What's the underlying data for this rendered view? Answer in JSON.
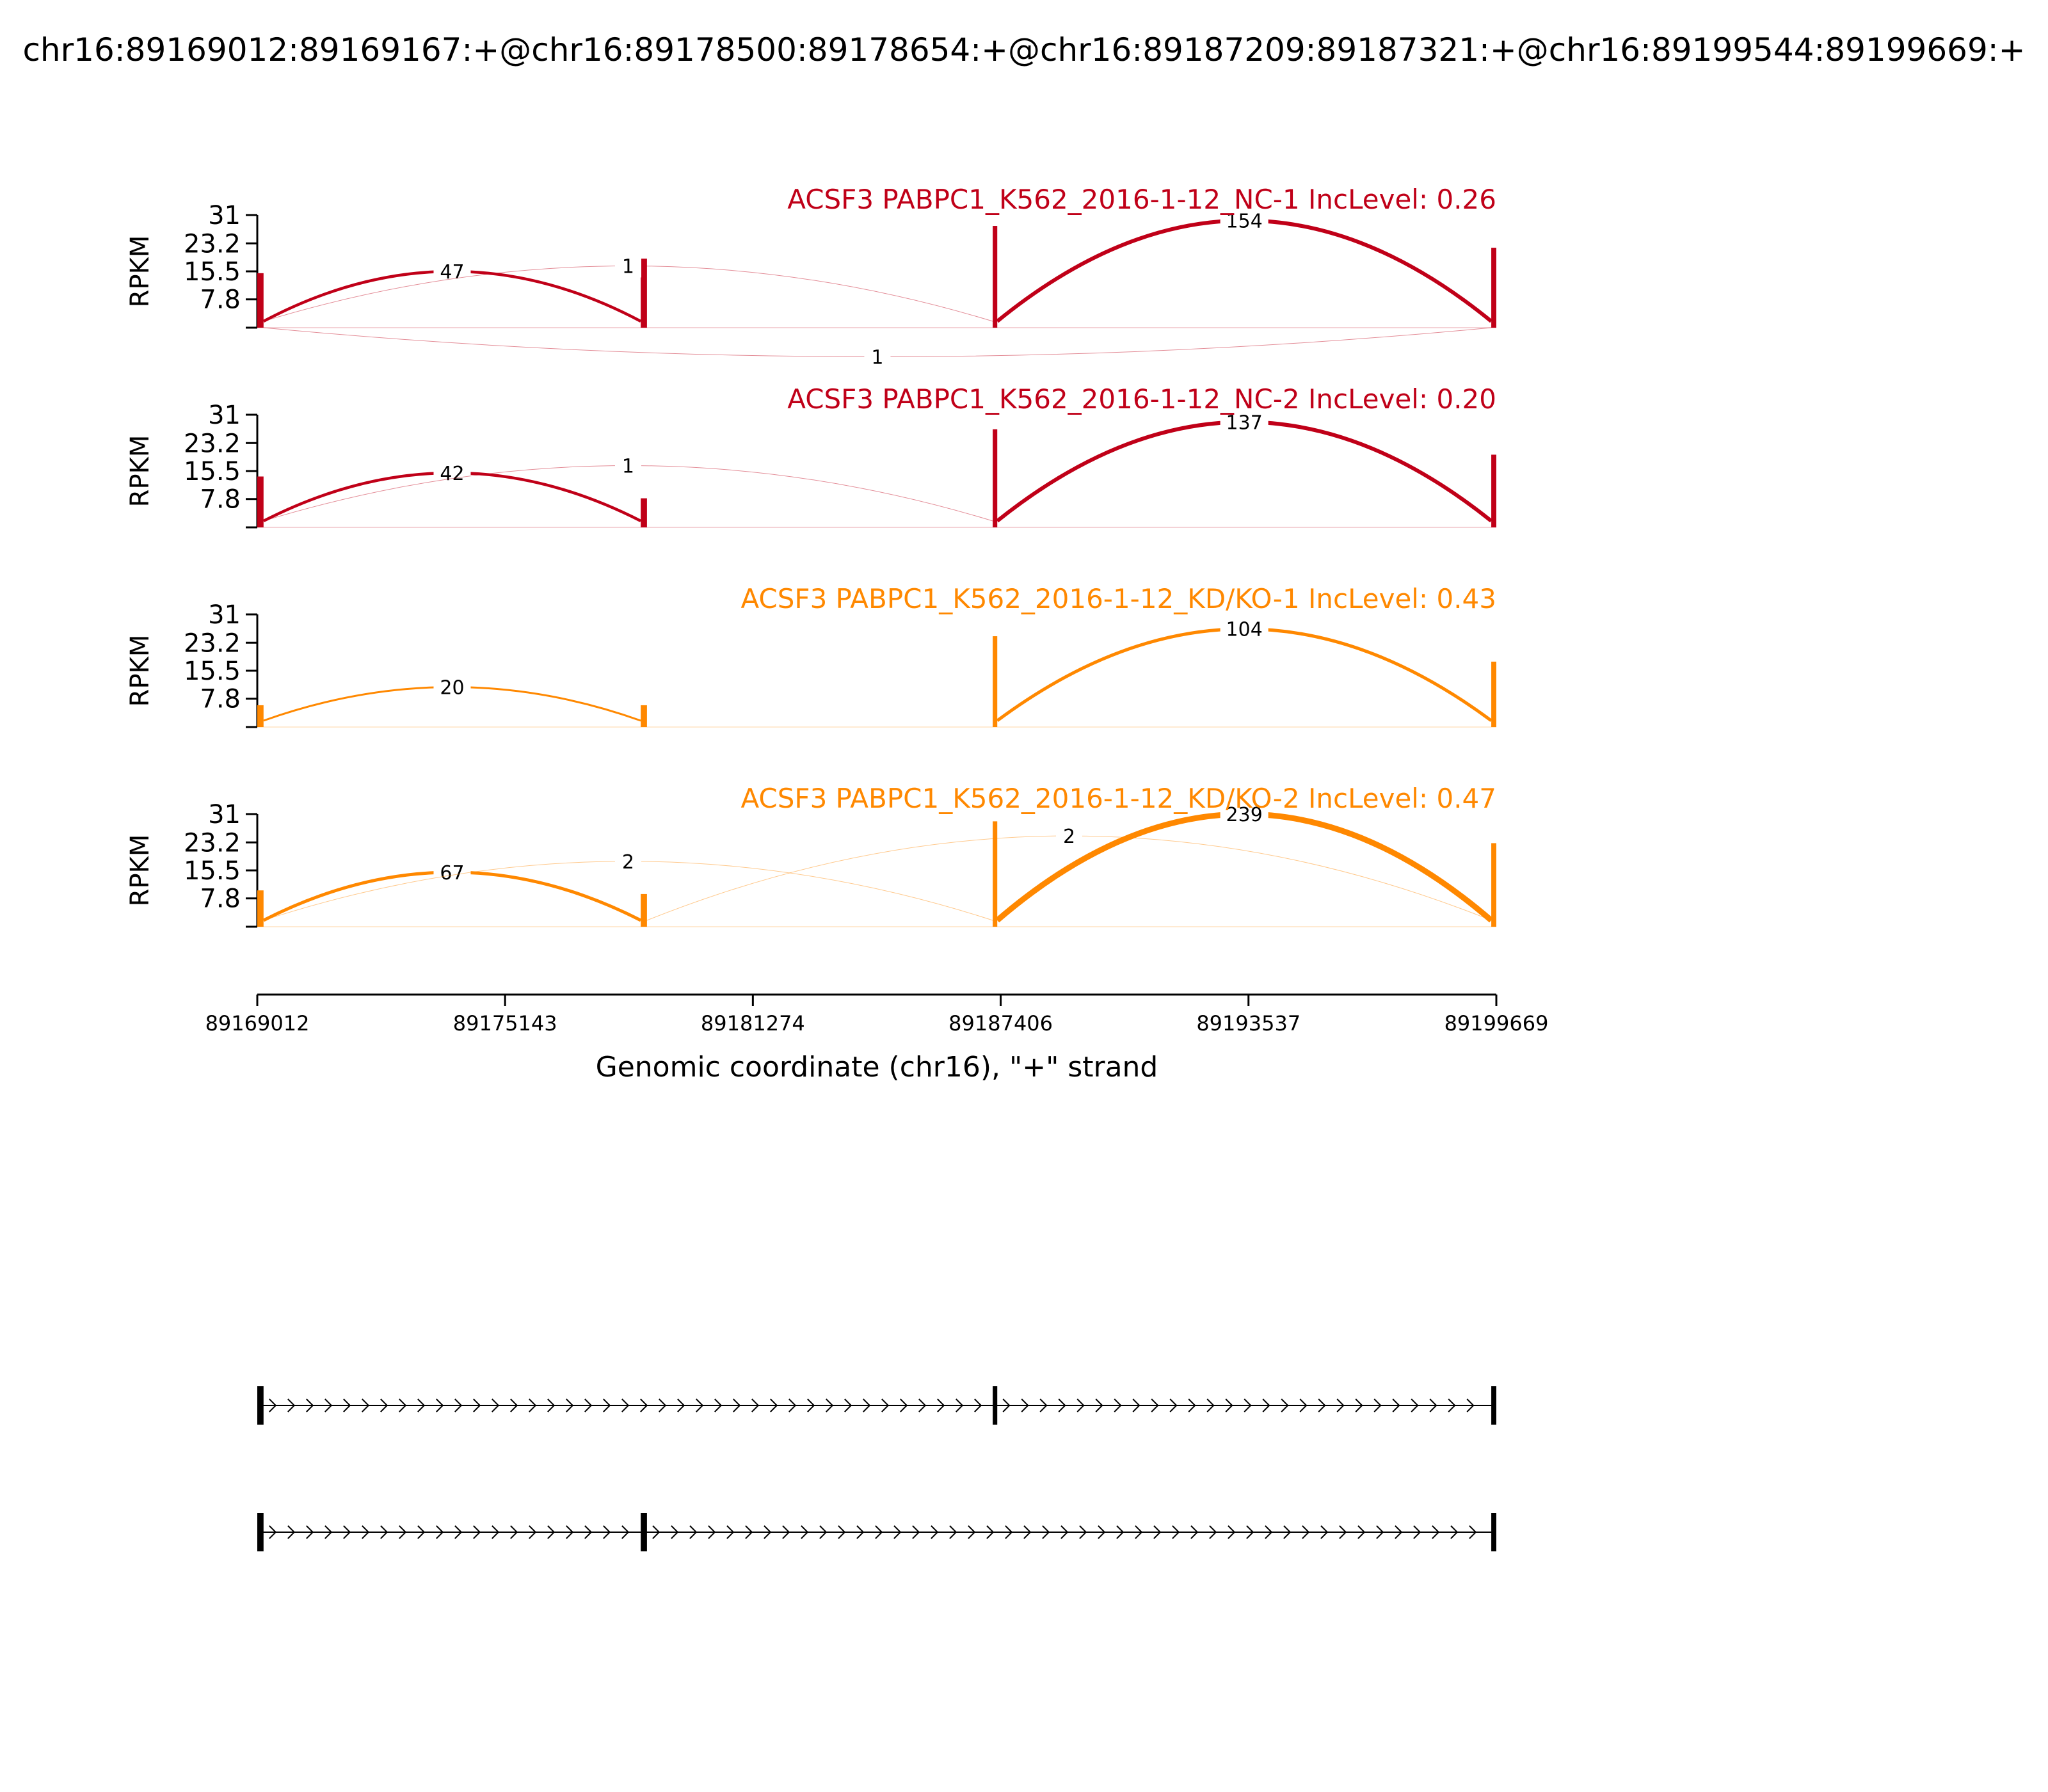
{
  "page": {
    "title": "chr16:89169012:89169167:+@chr16:89178500:89178654:+@chr16:89187209:89187321:+@chr16:89199544:89199669:+"
  },
  "chart_data": {
    "type": "sashimi",
    "x_label": "Genomic coordinate (chr16), \"+\" strand",
    "x_range": [
      89169012,
      89199669
    ],
    "x_ticks": [
      "89169012",
      "89175143",
      "89181274",
      "89187406",
      "89193537",
      "89199669"
    ],
    "y_label": "RPKM",
    "y_range": [
      0,
      31
    ],
    "y_ticks": [
      "7.8",
      "15.5",
      "23.2",
      "31"
    ],
    "exons": [
      {
        "start": 89169012,
        "end": 89169167
      },
      {
        "start": 89178500,
        "end": 89178654
      },
      {
        "start": 89187209,
        "end": 89187321
      },
      {
        "start": 89199544,
        "end": 89199669
      }
    ],
    "panels": [
      {
        "label": "ACSF3 PABPC1_K562_2016-1-12_NC-1 IncLevel: 0.26",
        "color": "#c00018",
        "exon_coverage": [
          15,
          19,
          28,
          22
        ],
        "junctions": [
          {
            "from": 89169167,
            "to": 89178500,
            "count": "47",
            "y": 15.5,
            "side": "above",
            "width": 4.5
          },
          {
            "from": 89169167,
            "to": 89187209,
            "count": "1",
            "y": 17,
            "side": "above",
            "width": 1
          },
          {
            "from": 89187321,
            "to": 89199544,
            "count": "154",
            "y": 29.5,
            "side": "above",
            "width": 6
          },
          {
            "from": 89169167,
            "to": 89199544,
            "count": "1",
            "y": 8,
            "side": "below",
            "width": 1
          }
        ]
      },
      {
        "label": "ACSF3 PABPC1_K562_2016-1-12_NC-2 IncLevel: 0.20",
        "color": "#c00018",
        "exon_coverage": [
          14,
          8,
          27,
          20
        ],
        "junctions": [
          {
            "from": 89169167,
            "to": 89178500,
            "count": "42",
            "y": 15,
            "side": "above",
            "width": 4.5
          },
          {
            "from": 89169167,
            "to": 89187209,
            "count": "1",
            "y": 17,
            "side": "above",
            "width": 1
          },
          {
            "from": 89187321,
            "to": 89199544,
            "count": "137",
            "y": 29,
            "side": "above",
            "width": 6
          }
        ]
      },
      {
        "label": "ACSF3 PABPC1_K562_2016-1-12_KD/KO-1 IncLevel: 0.43",
        "color": "#ff8800",
        "exon_coverage": [
          6,
          6,
          25,
          18
        ],
        "junctions": [
          {
            "from": 89169167,
            "to": 89178500,
            "count": "20",
            "y": 11,
            "side": "above",
            "width": 3
          },
          {
            "from": 89187321,
            "to": 89199544,
            "count": "104",
            "y": 27,
            "side": "above",
            "width": 5
          }
        ]
      },
      {
        "label": "ACSF3 PABPC1_K562_2016-1-12_KD/KO-2 IncLevel: 0.47",
        "color": "#ff8800",
        "exon_coverage": [
          10,
          9,
          29,
          23
        ],
        "junctions": [
          {
            "from": 89169167,
            "to": 89178500,
            "count": "67",
            "y": 15,
            "side": "above",
            "width": 5
          },
          {
            "from": 89169167,
            "to": 89187209,
            "count": "2",
            "y": 18,
            "side": "above",
            "width": 1
          },
          {
            "from": 89178654,
            "to": 89199544,
            "count": "2",
            "y": 25,
            "side": "above",
            "width": 1
          },
          {
            "from": 89187321,
            "to": 89199544,
            "count": "239",
            "y": 31,
            "side": "above",
            "width": 9
          }
        ]
      }
    ],
    "isoforms": [
      {
        "exons": [
          [
            89169012,
            89169167
          ],
          [
            89187209,
            89187321
          ],
          [
            89199544,
            89199669
          ]
        ]
      },
      {
        "exons": [
          [
            89169012,
            89169167
          ],
          [
            89178500,
            89178654
          ],
          [
            89199544,
            89199669
          ]
        ]
      }
    ]
  }
}
